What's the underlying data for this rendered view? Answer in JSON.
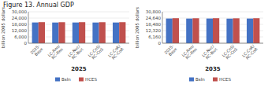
{
  "chart_data": [
    {
      "type": "bar",
      "title": "Figure 13.  Annual GDP",
      "xlabel": "2025",
      "ylabel": "billion 2005 dollars",
      "categories": [
        "2025-\nBase",
        "LC-Ren/\nRC-Ren",
        "LC-Nuc/\nRC-Nuc",
        "LC-CnS/\nRC-CnS",
        "LC-CoR/\nRC-CoR"
      ],
      "series": [
        {
          "name": "Bsln",
          "color": "#4472C4",
          "values": [
            19800,
            19750,
            19770,
            19750,
            19760
          ]
        },
        {
          "name": "HCES",
          "color": "#C0504D",
          "values": [
            20100,
            20050,
            20080,
            20050,
            20070
          ]
        }
      ],
      "ylim": [
        0,
        30000
      ],
      "yticks": [
        0,
        {
          "value": 6000,
          "label": "6,000"
        },
        {
          "value": 12000,
          "label": "12,000"
        },
        {
          "value": 18000,
          "label": "18,000"
        },
        {
          "value": 24000,
          "label": "24,000"
        },
        {
          "value": 30000,
          "label": "30,000"
        }
      ],
      "grid": true,
      "legend": "bottom"
    },
    {
      "type": "bar",
      "xlabel": "2035",
      "ylabel": "billion 2005 dollars",
      "categories": [
        "2025-\nBase",
        "LC-Ren/\nRC-Ren",
        "LC-Nuc/\nRC-Nuc",
        "LC-CnS/\nRC-CnS",
        "LC-CoR/\nRC-CoR"
      ],
      "series": [
        {
          "name": "Bsln",
          "color": "#4472C4",
          "values": [
            24200,
            24150,
            24200,
            24100,
            24180
          ]
        },
        {
          "name": "HCES",
          "color": "#C0504D",
          "values": [
            24500,
            24450,
            24500,
            24400,
            24480
          ]
        }
      ],
      "ylim": [
        0,
        30800
      ],
      "yticks": [
        0,
        {
          "value": 6160,
          "label": "6,160"
        },
        {
          "value": 12320,
          "label": "12,320"
        },
        {
          "value": 18480,
          "label": "18,480"
        },
        {
          "value": 24640,
          "label": "24,640"
        },
        {
          "value": 30800,
          "label": "30,800"
        }
      ],
      "grid": true,
      "legend": "bottom"
    }
  ]
}
